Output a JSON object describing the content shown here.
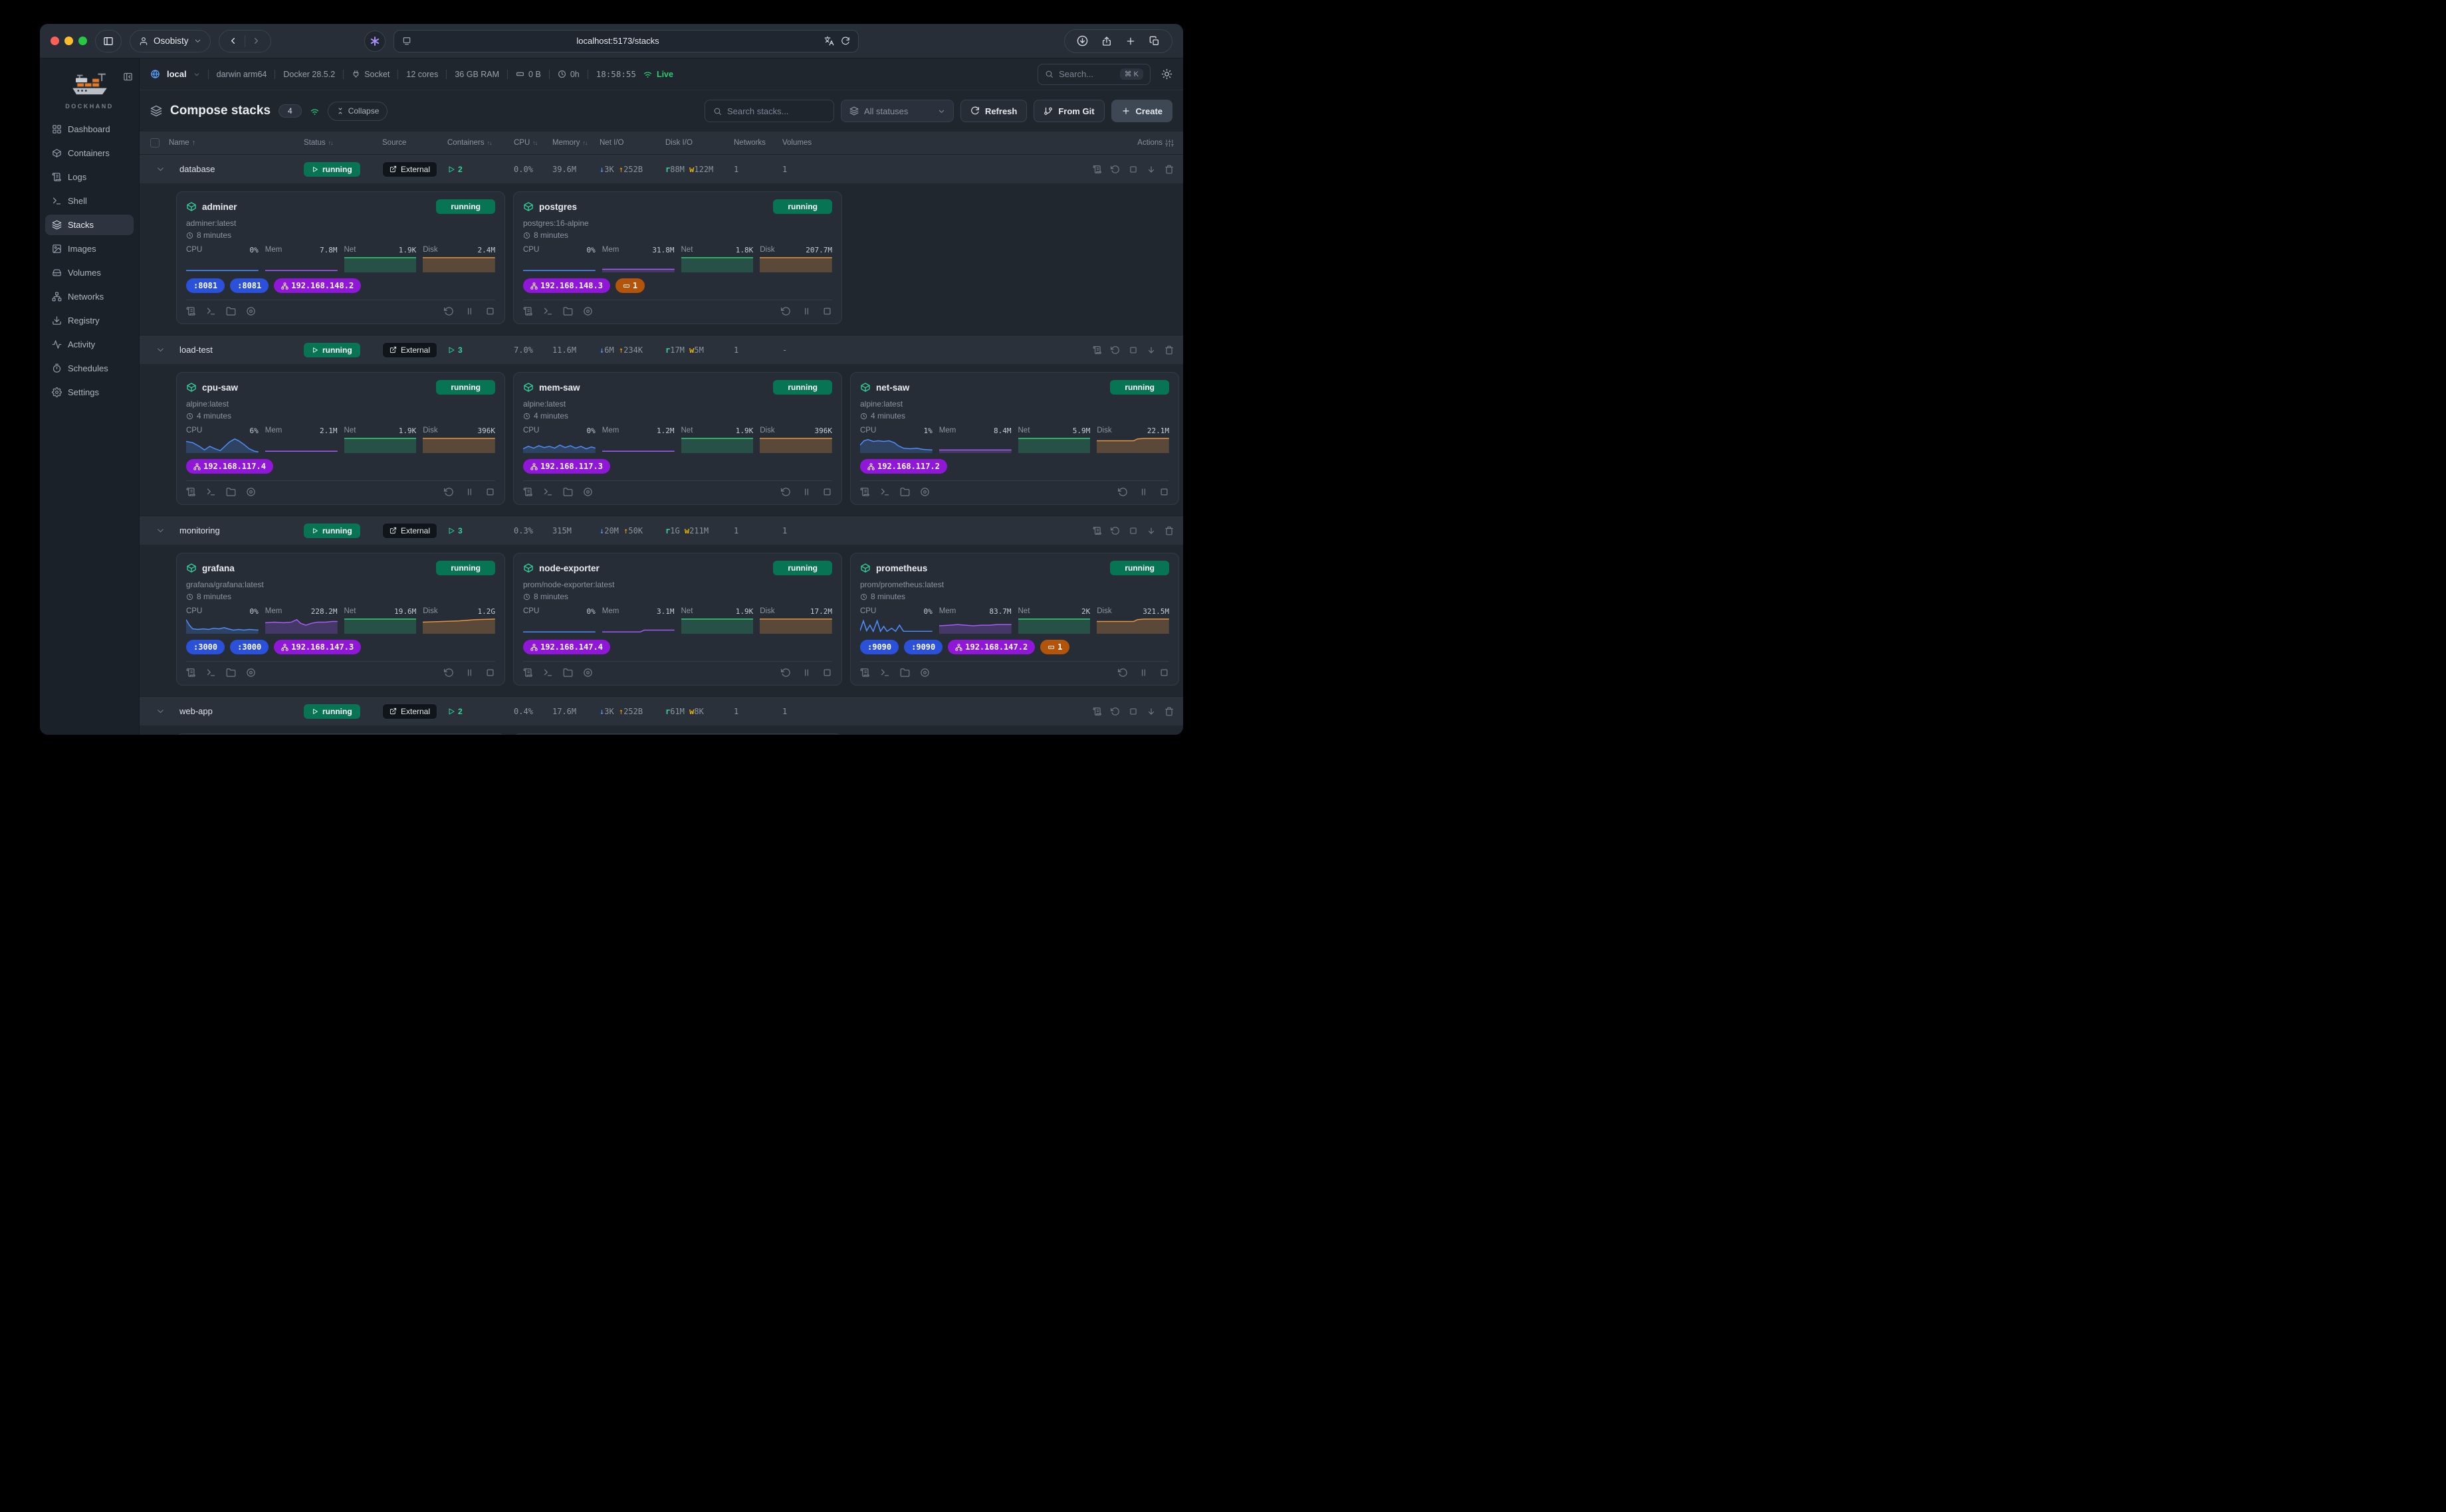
{
  "browser": {
    "user_label": "Osobisty",
    "url": "localhost:5173/stacks"
  },
  "sidebar": {
    "brand": "DOCKHAND",
    "items": [
      {
        "label": "Dashboard",
        "icon": "dashboard",
        "active": false
      },
      {
        "label": "Containers",
        "icon": "box",
        "active": false
      },
      {
        "label": "Logs",
        "icon": "scroll",
        "active": false
      },
      {
        "label": "Shell",
        "icon": "terminal",
        "active": false
      },
      {
        "label": "Stacks",
        "icon": "layers",
        "active": true
      },
      {
        "label": "Images",
        "icon": "image",
        "active": false
      },
      {
        "label": "Volumes",
        "icon": "drive",
        "active": false
      },
      {
        "label": "Networks",
        "icon": "network",
        "active": false
      },
      {
        "label": "Registry",
        "icon": "registry",
        "active": false
      },
      {
        "label": "Activity",
        "icon": "activity",
        "active": false
      },
      {
        "label": "Schedules",
        "icon": "timer",
        "active": false
      },
      {
        "label": "Settings",
        "icon": "gear",
        "active": false
      }
    ]
  },
  "hostbar": {
    "env": "local",
    "platform": "darwin arm64",
    "docker": "Docker 28.5.2",
    "socket": "Socket",
    "cores": "12 cores",
    "ram": "36 GB RAM",
    "disk": "0 B",
    "uptime": "0h",
    "time": "18:58:55",
    "live": "Live",
    "search_placeholder": "Search...",
    "search_shortcut": "⌘ K"
  },
  "toolbar": {
    "title": "Compose stacks",
    "count": "4",
    "collapse": "Collapse",
    "search_placeholder": "Search stacks...",
    "status_filter": "All statuses",
    "refresh": "Refresh",
    "from_git": "From Git",
    "create": "Create"
  },
  "table_columns": [
    {
      "label": "Name",
      "sort": "asc"
    },
    {
      "label": "Status",
      "sort": "both"
    },
    {
      "label": "Source",
      "sort": null
    },
    {
      "label": "Containers",
      "sort": "both"
    },
    {
      "label": "CPU",
      "sort": "both"
    },
    {
      "label": "Memory",
      "sort": "both"
    },
    {
      "label": "Net I/O",
      "sort": null
    },
    {
      "label": "Disk I/O",
      "sort": null
    },
    {
      "label": "Networks",
      "sort": null
    },
    {
      "label": "Volumes",
      "sort": null
    },
    {
      "label": "Actions",
      "sort": null
    }
  ],
  "stacks": [
    {
      "name": "database",
      "status": "running",
      "source": "External",
      "containers": "2",
      "cpu": "0.0%",
      "memory": "39.6M",
      "net_down": "3K",
      "net_up": "252B",
      "disk_read": "88M",
      "disk_write": "122M",
      "networks": "1",
      "volumes": "1",
      "cards": [
        {
          "name": "adminer",
          "status": "running",
          "image": "adminer:latest",
          "uptime": "8 minutes",
          "metrics": [
            {
              "key": "cpu",
              "label": "CPU",
              "value": "0%",
              "spark": "flat"
            },
            {
              "key": "mem",
              "label": "Mem",
              "value": "7.8M",
              "spark": "flat"
            },
            {
              "key": "net",
              "label": "Net",
              "value": "1.9K",
              "spark": "full"
            },
            {
              "key": "disk",
              "label": "Disk",
              "value": "2.4M",
              "spark": "full"
            }
          ],
          "badges": [
            {
              "kind": "port",
              "text": ":8081"
            },
            {
              "kind": "port",
              "text": ":8081"
            },
            {
              "kind": "net",
              "text": "192.168.148.2"
            }
          ]
        },
        {
          "name": "postgres",
          "status": "running",
          "image": "postgres:16-alpine",
          "uptime": "8 minutes",
          "metrics": [
            {
              "key": "cpu",
              "label": "CPU",
              "value": "0%",
              "spark": "flat"
            },
            {
              "key": "mem",
              "label": "Mem",
              "value": "31.8M",
              "spark": "flat2"
            },
            {
              "key": "net",
              "label": "Net",
              "value": "1.8K",
              "spark": "full"
            },
            {
              "key": "disk",
              "label": "Disk",
              "value": "207.7M",
              "spark": "full"
            }
          ],
          "badges": [
            {
              "kind": "net",
              "text": "192.168.148.3"
            },
            {
              "kind": "vol",
              "text": "1"
            }
          ]
        }
      ]
    },
    {
      "name": "load-test",
      "status": "running",
      "source": "External",
      "containers": "3",
      "cpu": "7.0%",
      "memory": "11.6M",
      "net_down": "6M",
      "net_up": "234K",
      "disk_read": "17M",
      "disk_write": "5M",
      "networks": "1",
      "volumes": "-",
      "cards": [
        {
          "name": "cpu-saw",
          "status": "running",
          "image": "alpine:latest",
          "uptime": "4 minutes",
          "metrics": [
            {
              "key": "cpu",
              "label": "CPU",
              "value": "6%",
              "spark": "saw"
            },
            {
              "key": "mem",
              "label": "Mem",
              "value": "2.1M",
              "spark": "flat"
            },
            {
              "key": "net",
              "label": "Net",
              "value": "1.9K",
              "spark": "full"
            },
            {
              "key": "disk",
              "label": "Disk",
              "value": "396K",
              "spark": "full"
            }
          ],
          "badges": [
            {
              "kind": "net",
              "text": "192.168.117.4"
            }
          ]
        },
        {
          "name": "mem-saw",
          "status": "running",
          "image": "alpine:latest",
          "uptime": "4 minutes",
          "metrics": [
            {
              "key": "cpu",
              "label": "CPU",
              "value": "0%",
              "spark": "wave"
            },
            {
              "key": "mem",
              "label": "Mem",
              "value": "1.2M",
              "spark": "flat"
            },
            {
              "key": "net",
              "label": "Net",
              "value": "1.9K",
              "spark": "full"
            },
            {
              "key": "disk",
              "label": "Disk",
              "value": "396K",
              "spark": "full"
            }
          ],
          "badges": [
            {
              "kind": "net",
              "text": "192.168.117.3"
            }
          ]
        },
        {
          "name": "net-saw",
          "status": "running",
          "image": "alpine:latest",
          "uptime": "4 minutes",
          "metrics": [
            {
              "key": "cpu",
              "label": "CPU",
              "value": "1%",
              "spark": "wave2"
            },
            {
              "key": "mem",
              "label": "Mem",
              "value": "8.4M",
              "spark": "flat2"
            },
            {
              "key": "net",
              "label": "Net",
              "value": "5.9M",
              "spark": "full"
            },
            {
              "key": "disk",
              "label": "Disk",
              "value": "22.1M",
              "spark": "step"
            }
          ],
          "badges": [
            {
              "kind": "net",
              "text": "192.168.117.2"
            }
          ]
        }
      ]
    },
    {
      "name": "monitoring",
      "status": "running",
      "source": "External",
      "containers": "3",
      "cpu": "0.3%",
      "memory": "315M",
      "net_down": "20M",
      "net_up": "50K",
      "disk_read": "1G",
      "disk_write": "211M",
      "networks": "1",
      "volumes": "1",
      "cards": [
        {
          "name": "grafana",
          "status": "running",
          "image": "grafana/grafana:latest",
          "uptime": "8 minutes",
          "metrics": [
            {
              "key": "cpu",
              "label": "CPU",
              "value": "0%",
              "spark": "drop"
            },
            {
              "key": "mem",
              "label": "Mem",
              "value": "228.2M",
              "spark": "bump"
            },
            {
              "key": "net",
              "label": "Net",
              "value": "19.6M",
              "spark": "full"
            },
            {
              "key": "disk",
              "label": "Disk",
              "value": "1.2G",
              "spark": "ramp"
            }
          ],
          "badges": [
            {
              "kind": "port",
              "text": ":3000"
            },
            {
              "kind": "port",
              "text": ":3000"
            },
            {
              "kind": "net",
              "text": "192.168.147.3"
            }
          ]
        },
        {
          "name": "node-exporter",
          "status": "running",
          "image": "prom/node-exporter:latest",
          "uptime": "8 minutes",
          "metrics": [
            {
              "key": "cpu",
              "label": "CPU",
              "value": "0%",
              "spark": "flat"
            },
            {
              "key": "mem",
              "label": "Mem",
              "value": "3.1M",
              "spark": "flatstep"
            },
            {
              "key": "net",
              "label": "Net",
              "value": "1.9K",
              "spark": "full"
            },
            {
              "key": "disk",
              "label": "Disk",
              "value": "17.2M",
              "spark": "full"
            }
          ],
          "badges": [
            {
              "kind": "net",
              "text": "192.168.147.4"
            }
          ]
        },
        {
          "name": "prometheus",
          "status": "running",
          "image": "prom/prometheus:latest",
          "uptime": "8 minutes",
          "metrics": [
            {
              "key": "cpu",
              "label": "CPU",
              "value": "0%",
              "spark": "spiky"
            },
            {
              "key": "mem",
              "label": "Mem",
              "value": "83.7M",
              "spark": "lowbump"
            },
            {
              "key": "net",
              "label": "Net",
              "value": "2K",
              "spark": "full"
            },
            {
              "key": "disk",
              "label": "Disk",
              "value": "321.5M",
              "spark": "step"
            }
          ],
          "badges": [
            {
              "kind": "port",
              "text": ":9090"
            },
            {
              "kind": "port",
              "text": ":9090"
            },
            {
              "kind": "net",
              "text": "192.168.147.2"
            },
            {
              "kind": "vol",
              "text": "1"
            }
          ]
        }
      ]
    },
    {
      "name": "web-app",
      "status": "running",
      "source": "External",
      "containers": "2",
      "cpu": "0.4%",
      "memory": "17.6M",
      "net_down": "3K",
      "net_up": "252B",
      "disk_read": "61M",
      "disk_write": "8K",
      "networks": "1",
      "volumes": "1",
      "partial_cards": 2,
      "cards": []
    }
  ],
  "colors": {
    "traffic_red": "#ff5f57",
    "traffic_yellow": "#febc2e",
    "traffic_green": "#28c840",
    "running_badge_bg": "#077453",
    "port_badge_bg": "#2b50d9",
    "network_badge_bg": "#9117d8",
    "volume_badge_bg": "#b25409",
    "cpu_spark": "#4f8df9",
    "mem_spark": "#a35df2",
    "net_spark": "#2fd07e",
    "disk_spark": "#e2953f",
    "live": "#2ecc71",
    "accent_green": "#34d399"
  }
}
